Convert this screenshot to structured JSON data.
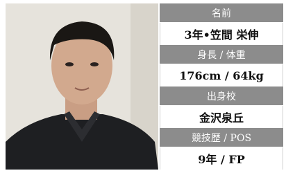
{
  "profile": {
    "rows": [
      {
        "label": "名前",
        "value": "3年•笠間 栄伸"
      },
      {
        "label": "身長 / 体重",
        "value": "176cm / 64kg"
      },
      {
        "label": "出身校",
        "value": "金沢泉丘"
      },
      {
        "label": "競技歴 / POS",
        "value": "9年 / FP"
      }
    ]
  }
}
